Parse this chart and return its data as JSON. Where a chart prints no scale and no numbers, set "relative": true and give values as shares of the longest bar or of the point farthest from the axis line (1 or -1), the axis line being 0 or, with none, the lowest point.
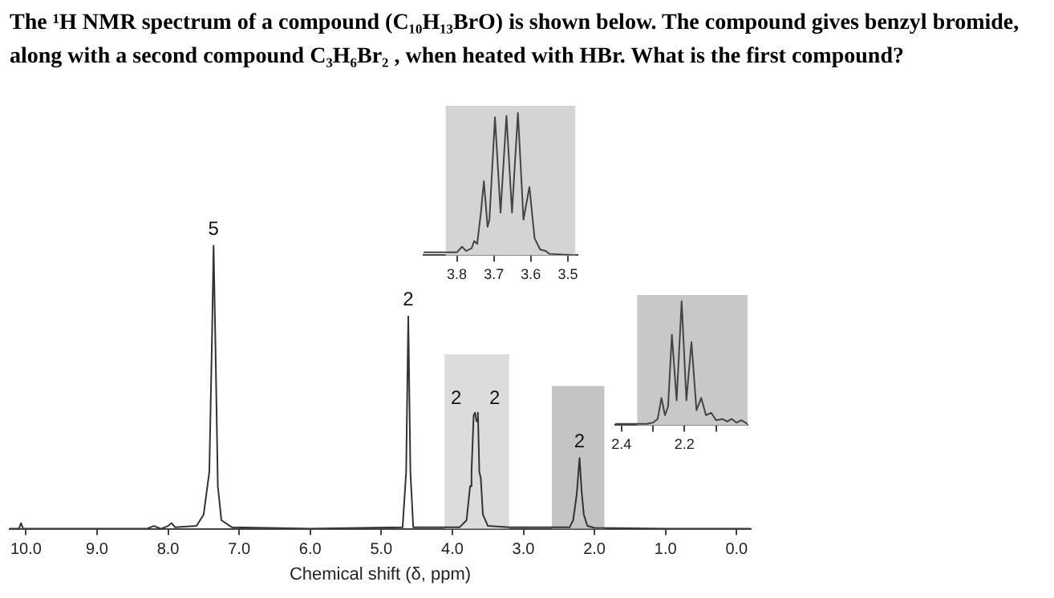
{
  "chart_data": [
    {
      "type": "line",
      "title": "The ¹H NMR spectrum of a compound (C₁₀H₁₃BrO) is shown below. The compound gives benzyl bromide, along with a second compound C₃H₆Br₂ , when heated with HBr. What is the first compound?",
      "xlabel": "Chemical shift (δ, ppm)",
      "relative": true,
      "color": "#333333",
      "xlim": [
        10.23,
        -0.2
      ],
      "xticks": [
        {
          "value": 10,
          "label": "10.0"
        },
        {
          "value": 9,
          "label": "9.0"
        },
        {
          "value": 8,
          "label": "8.0"
        },
        {
          "value": 7,
          "label": "7.0"
        },
        {
          "value": 6,
          "label": "6.0"
        },
        {
          "value": 5,
          "label": "5.0"
        },
        {
          "value": 4,
          "label": "4.0"
        },
        {
          "value": 3,
          "label": "3.0"
        },
        {
          "value": 2,
          "label": "2.0"
        },
        {
          "value": 1,
          "label": "1.0"
        },
        {
          "value": 0,
          "label": "0.0"
        }
      ],
      "bands": [
        {
          "axis": "x",
          "from": 4.11,
          "to": 3.2,
          "color": "#dcdcdc"
        },
        {
          "axis": "x",
          "from": 2.6,
          "to": 1.86,
          "color": "#c4c4c4"
        }
      ],
      "annotations": [
        {
          "text": "5",
          "x": 7.36,
          "y": 1
        },
        {
          "text": "2",
          "x": 4.62,
          "y": 0.75
        },
        "2",
        "2",
        {
          "text": "2",
          "x": 2.21,
          "y": 0.25
        }
      ],
      "x": [
        10.23,
        10.1,
        10.07,
        10.04,
        8.3,
        8.2,
        8.1,
        8.0,
        7.95,
        7.9,
        7.6,
        7.5,
        7.42,
        7.38,
        7.36,
        7.33,
        7.3,
        7.25,
        7.1,
        6.0,
        4.7,
        4.65,
        4.62,
        4.59,
        4.55,
        3.9,
        3.8,
        3.75,
        3.73,
        3.7,
        3.68,
        3.66,
        3.64,
        3.62,
        3.6,
        3.57,
        3.5,
        3.2,
        2.35,
        2.3,
        2.25,
        2.21,
        2.18,
        2.15,
        2.1,
        2.0,
        1.0,
        -0.2
      ],
      "values": [
        0,
        0,
        0.02,
        0,
        0,
        0.01,
        0,
        0.01,
        0.02,
        0.005,
        0.01,
        0.05,
        0.2,
        0.7,
        1,
        0.6,
        0.15,
        0.03,
        0.005,
        0,
        0.005,
        0.2,
        0.75,
        0.2,
        0.005,
        0.005,
        0.03,
        0.15,
        0.2,
        0.4,
        0.41,
        0.38,
        0.41,
        0.2,
        0.18,
        0.05,
        0.01,
        0.005,
        0.005,
        0.03,
        0.12,
        0.25,
        0.13,
        0.05,
        0.01,
        0.003,
        0,
        0
      ]
    },
    {
      "type": "line",
      "relative": true,
      "color": "#444444",
      "xlim": [
        3.89,
        3.474
      ],
      "xticks": [
        3.8,
        3.7,
        3.6,
        3.5
      ],
      "bands": [
        {
          "axis": "x",
          "from": 3.83,
          "to": 3.48,
          "color": "#d4d4d4"
        }
      ],
      "x": [
        3.89,
        3.8,
        3.786,
        3.775,
        3.76,
        3.753,
        3.745,
        3.735,
        3.727,
        3.717,
        3.712,
        3.697,
        3.682,
        3.666,
        3.651,
        3.635,
        3.62,
        3.604,
        3.59,
        3.575,
        3.56,
        3.55,
        3.474
      ],
      "values": [
        0.02,
        0.02,
        0.06,
        0.03,
        0.05,
        0.1,
        0.08,
        0.3,
        0.52,
        0.2,
        0.25,
        0.97,
        0.3,
        0.98,
        0.3,
        1,
        0.25,
        0.48,
        0.12,
        0.04,
        0.03,
        0.01,
        0
      ]
    },
    {
      "type": "line",
      "relative": true,
      "color": "#444444",
      "xlim": [
        2.42,
        2.0
      ],
      "xticks": [
        2.4,
        {
          "value": 2.3,
          "label": null
        },
        2.2,
        {
          "value": 2.1,
          "label": null
        }
      ],
      "bands": [
        {
          "axis": "x",
          "from": 2.35,
          "to": 2.0,
          "color": "#c8c8c8"
        }
      ],
      "x": [
        2.42,
        2.32,
        2.3,
        2.285,
        2.273,
        2.262,
        2.252,
        2.24,
        2.225,
        2.209,
        2.194,
        2.178,
        2.162,
        2.147,
        2.132,
        2.115,
        2.1,
        2.08,
        2.065,
        2.05,
        2.035,
        2.02,
        2.0
      ],
      "values": [
        0.01,
        0.01,
        0.02,
        0.05,
        0.22,
        0.08,
        0.15,
        0.73,
        0.2,
        1,
        0.2,
        0.67,
        0.12,
        0.22,
        0.08,
        0.1,
        0.04,
        0.05,
        0.03,
        0.05,
        0.02,
        0.04,
        0.01
      ]
    }
  ]
}
